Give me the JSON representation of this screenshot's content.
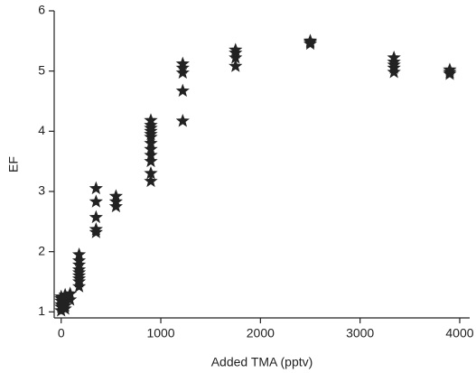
{
  "chart_data": {
    "type": "scatter",
    "xlabel": "Added TMA (pptv)",
    "ylabel": "EF",
    "color": "#222222",
    "marker": "star",
    "x": [
      0,
      0,
      0,
      0,
      0,
      0,
      40,
      40,
      40,
      40,
      40,
      90,
      90,
      180,
      180,
      180,
      180,
      180,
      180,
      180,
      180,
      180,
      350,
      350,
      350,
      350,
      350,
      550,
      550,
      550,
      900,
      900,
      900,
      900,
      900,
      900,
      900,
      900,
      900,
      900,
      900,
      900,
      1220,
      1220,
      1220,
      1220,
      1220,
      1750,
      1750,
      1750,
      1750,
      2500,
      2500,
      2500,
      3340,
      3340,
      3340,
      3340,
      3340,
      3900,
      3900,
      3900
    ],
    "values": [
      1.02,
      1.08,
      1.12,
      1.18,
      1.22,
      1.25,
      1.05,
      1.1,
      1.15,
      1.2,
      1.28,
      1.2,
      1.3,
      1.42,
      1.5,
      1.55,
      1.6,
      1.65,
      1.7,
      1.78,
      1.85,
      1.95,
      2.32,
      2.37,
      2.57,
      2.83,
      3.05,
      2.75,
      2.83,
      2.92,
      3.17,
      3.3,
      3.5,
      3.6,
      3.7,
      3.8,
      3.9,
      3.95,
      4.0,
      4.05,
      4.1,
      4.18,
      4.17,
      4.67,
      4.97,
      5.05,
      5.12,
      5.08,
      5.22,
      5.3,
      5.35,
      5.45,
      5.48,
      5.5,
      4.98,
      5.05,
      5.1,
      5.15,
      5.22,
      4.95,
      4.98,
      5.02
    ],
    "xlim": [
      -70,
      4100
    ],
    "xticks": [
      0,
      1000,
      2000,
      3000,
      4000
    ],
    "ylim": [
      0.9,
      6
    ],
    "yticks": [
      1,
      2,
      3,
      4,
      5,
      6
    ]
  }
}
